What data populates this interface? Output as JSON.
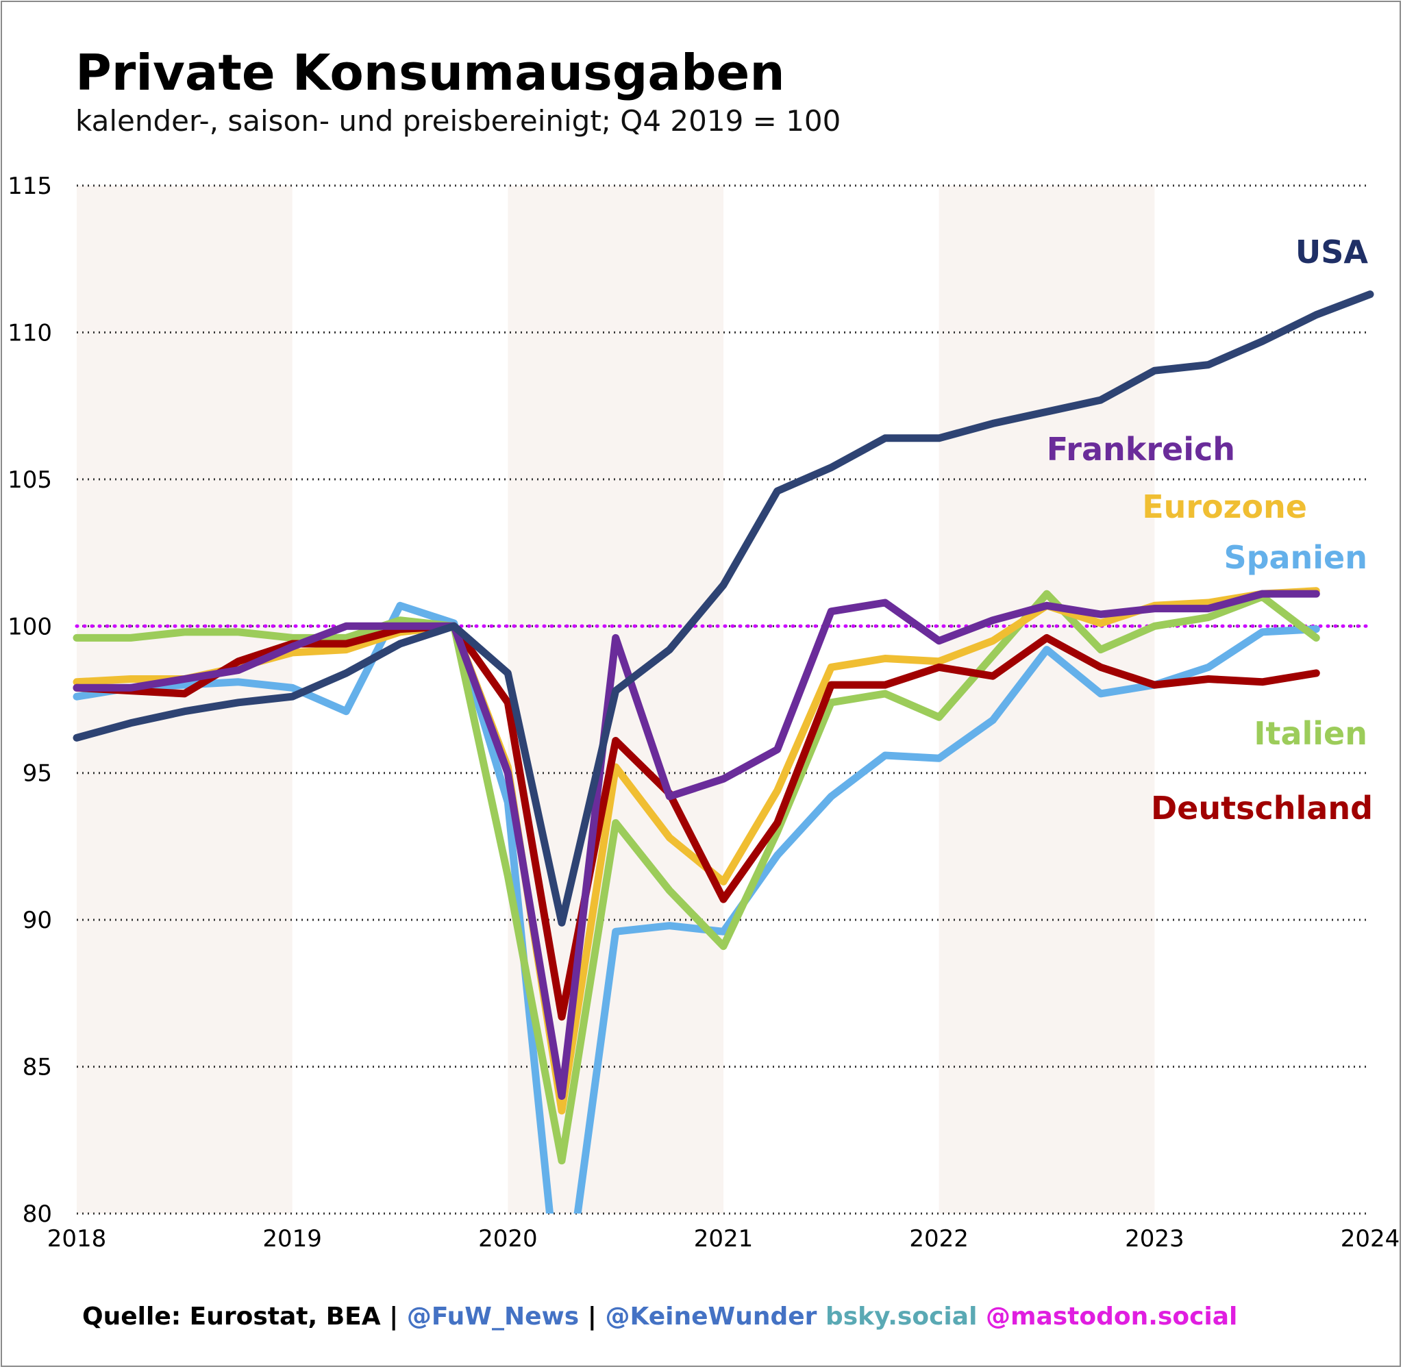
{
  "title": "Private Konsumausgaben",
  "subtitle": "kalender-, saison- und preisbereinigt; Q4 2019 = 100",
  "footer": {
    "source": "Quelle: Eurostat, BEA",
    "sep1": " | ",
    "handle1": "@FuW_News",
    "sep2": " | ",
    "handle2": "@KeineWunder",
    "bsky": " bsky.social ",
    "mastodon": "@mastodon.social",
    "colors": {
      "source": "#000000",
      "handle": "#4472c4",
      "bsky": "#5aa9b4",
      "mastodon": "#e01ee0"
    }
  },
  "chart_data": {
    "type": "line",
    "x_unit": "year",
    "xlim": [
      2018,
      2024
    ],
    "ylim": [
      80,
      115
    ],
    "yticks": [
      80,
      85,
      90,
      95,
      100,
      105,
      110,
      115
    ],
    "xticks": [
      2018,
      2019,
      2020,
      2021,
      2022,
      2023,
      2024
    ],
    "grid": "horizontal dotted",
    "shaded_years": [
      [
        2018,
        2019
      ],
      [
        2020,
        2021
      ],
      [
        2022,
        2023
      ],
      [
        2024,
        2024.125
      ]
    ],
    "reference_line": {
      "y": 100,
      "color": "#cc00ff",
      "style": "dotted"
    },
    "legend": "end-labels",
    "x": [
      2018.0,
      2018.25,
      2018.5,
      2018.75,
      2019.0,
      2019.25,
      2019.5,
      2019.75,
      2020.0,
      2020.25,
      2020.5,
      2020.75,
      2021.0,
      2021.25,
      2021.5,
      2021.75,
      2022.0,
      2022.25,
      2022.5,
      2022.75,
      2023.0,
      2023.25,
      2023.5,
      2023.75,
      2024.0
    ],
    "series": [
      {
        "name": "USA",
        "color": "#2e4373",
        "label_color": "#1f2f66",
        "values": [
          96.2,
          96.7,
          97.1,
          97.4,
          97.6,
          98.4,
          99.4,
          100.0,
          98.4,
          89.9,
          97.8,
          99.2,
          101.4,
          104.6,
          105.4,
          106.4,
          106.4,
          106.9,
          107.3,
          107.7,
          108.7,
          108.9,
          109.7,
          110.6,
          111.3
        ]
      },
      {
        "name": "Frankreich",
        "color": "#6a2c9a",
        "label_color": "#6a2c9a",
        "values": [
          97.9,
          97.9,
          98.2,
          98.5,
          99.3,
          100.0,
          100.0,
          100.0,
          95.0,
          84.0,
          99.6,
          94.2,
          94.8,
          95.8,
          100.5,
          100.8,
          99.5,
          100.2,
          100.7,
          100.4,
          100.6,
          100.6,
          101.1,
          101.1,
          null
        ]
      },
      {
        "name": "Eurozone",
        "color": "#f0be32",
        "label_color": "#f0be32",
        "values": [
          98.1,
          98.2,
          98.2,
          98.6,
          99.1,
          99.2,
          99.8,
          100.0,
          95.2,
          83.5,
          95.2,
          92.8,
          91.3,
          94.4,
          98.6,
          98.9,
          98.8,
          99.5,
          100.7,
          100.1,
          100.7,
          100.8,
          101.1,
          101.2,
          null
        ]
      },
      {
        "name": "Spanien",
        "color": "#64b0ea",
        "label_color": "#64b0ea",
        "values": [
          97.6,
          97.9,
          98.0,
          98.1,
          97.9,
          97.1,
          100.7,
          100.1,
          94.0,
          76.0,
          89.6,
          89.8,
          89.6,
          92.2,
          94.2,
          95.6,
          95.5,
          96.8,
          99.2,
          97.7,
          98.0,
          98.6,
          99.8,
          99.9,
          null
        ]
      },
      {
        "name": "Italien",
        "color": "#9ccc5a",
        "label_color": "#9ccc5a",
        "values": [
          99.6,
          99.6,
          99.8,
          99.8,
          99.6,
          99.6,
          100.2,
          100.0,
          91.5,
          81.8,
          93.3,
          91.0,
          89.1,
          93.0,
          97.4,
          97.7,
          96.9,
          99.0,
          101.1,
          99.2,
          100.0,
          100.3,
          101.0,
          99.6,
          null
        ]
      },
      {
        "name": "Deutschland",
        "color": "#a00000",
        "label_color": "#a00000",
        "values": [
          97.9,
          97.8,
          97.7,
          98.8,
          99.4,
          99.4,
          99.9,
          100.0,
          97.4,
          86.7,
          96.1,
          94.3,
          90.7,
          93.3,
          98.0,
          98.0,
          98.6,
          98.3,
          99.6,
          98.6,
          98.0,
          98.2,
          98.1,
          98.4,
          null
        ]
      }
    ]
  }
}
